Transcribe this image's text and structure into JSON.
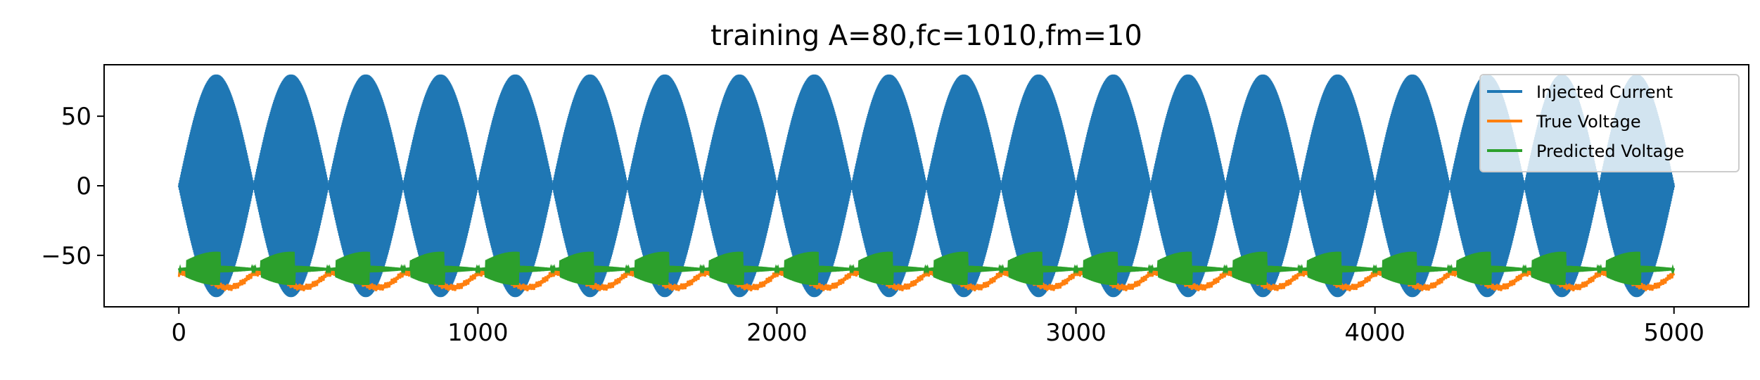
{
  "chart_data": {
    "type": "line",
    "title": "training A=80,fc=1010,fm=10",
    "xlabel": "",
    "ylabel": "",
    "xlim": [
      -250,
      5250
    ],
    "ylim": [
      -87,
      87
    ],
    "x_ticks": [
      0,
      1000,
      2000,
      3000,
      4000,
      5000
    ],
    "x_tick_labels": [
      "0",
      "1000",
      "2000",
      "3000",
      "4000",
      "5000"
    ],
    "y_ticks": [
      50,
      0,
      -50
    ],
    "y_tick_labels": [
      "50",
      "0",
      "−50"
    ],
    "grid": false,
    "legend_position": "upper right",
    "n_points": 5000,
    "series": [
      {
        "name": "Injected Current",
        "color": "#1f77b4",
        "amplitude": 80,
        "carrier_frequency": 1010,
        "modulation_frequency": 10,
        "envelope_peaks": [
          125,
          375,
          625,
          875,
          1125,
          1375,
          1625,
          1875,
          2125,
          2375,
          2625,
          2875,
          3125,
          3375,
          3625,
          3875,
          4125,
          4375,
          4625,
          4875
        ],
        "y_range": [
          -80,
          80
        ]
      },
      {
        "name": "True Voltage",
        "color": "#ff7f0e",
        "baseline": -63,
        "y_range": [
          -73,
          -60
        ]
      },
      {
        "name": "Predicted Voltage",
        "color": "#2ca02c",
        "baseline": -60,
        "y_range": [
          -72,
          -45
        ]
      }
    ]
  }
}
